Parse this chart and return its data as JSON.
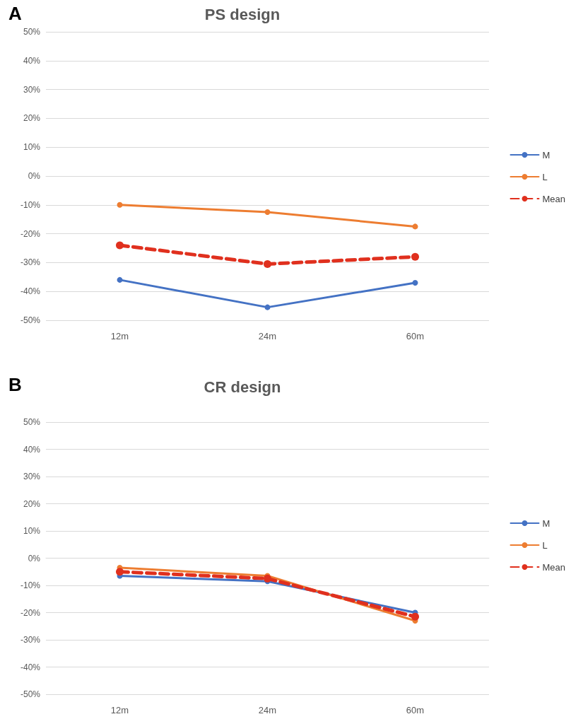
{
  "chart_data": [
    {
      "type": "line",
      "title": "PS design",
      "annotations": [
        "A"
      ],
      "categories": [
        "12m",
        "24m",
        "60m"
      ],
      "series": [
        {
          "name": "M",
          "color": "#4472c4",
          "values": [
            -36,
            -45.5,
            -37
          ]
        },
        {
          "name": "L",
          "color": "#ed7d31",
          "values": [
            -10,
            -12.5,
            -17.5
          ]
        },
        {
          "name": "Mean",
          "color": "#e0301e",
          "values": [
            -24,
            -30.5,
            -28
          ],
          "line_style": "dashed"
        }
      ],
      "ylim": [
        -50,
        50
      ],
      "yticks": [
        {
          "value": -50,
          "label": "-50%"
        },
        {
          "value": -40,
          "label": "-40%"
        },
        {
          "value": -30,
          "label": "-30%"
        },
        {
          "value": -20,
          "label": "-20%"
        },
        {
          "value": -10,
          "label": "-10%"
        },
        {
          "value": 0,
          "label": "0%"
        },
        {
          "value": 10,
          "label": "10%"
        },
        {
          "value": 20,
          "label": "20%"
        },
        {
          "value": 30,
          "label": "30%"
        },
        {
          "value": 40,
          "label": "40%"
        },
        {
          "value": 50,
          "label": "50%"
        }
      ],
      "grid": "y",
      "legend": "right",
      "marker": "circle"
    },
    {
      "type": "line",
      "title": "CR design",
      "annotations": [
        "B"
      ],
      "categories": [
        "12m",
        "24m",
        "60m"
      ],
      "series": [
        {
          "name": "M",
          "color": "#4472c4",
          "values": [
            -6.5,
            -8.5,
            -20
          ]
        },
        {
          "name": "L",
          "color": "#ed7d31",
          "values": [
            -3.5,
            -6.5,
            -23
          ]
        },
        {
          "name": "Mean",
          "color": "#e0301e",
          "values": [
            -5,
            -7.5,
            -21.5
          ],
          "line_style": "dashed"
        }
      ],
      "ylim": [
        -50,
        50
      ],
      "yticks": [
        {
          "value": -50,
          "label": "-50%"
        },
        {
          "value": -40,
          "label": "-40%"
        },
        {
          "value": -30,
          "label": "-30%"
        },
        {
          "value": -20,
          "label": "-20%"
        },
        {
          "value": -10,
          "label": "-10%"
        },
        {
          "value": 0,
          "label": "0%"
        },
        {
          "value": 10,
          "label": "10%"
        },
        {
          "value": 20,
          "label": "20%"
        },
        {
          "value": 30,
          "label": "30%"
        },
        {
          "value": 40,
          "label": "40%"
        },
        {
          "value": 50,
          "label": "50%"
        }
      ],
      "grid": "y",
      "legend": "right",
      "marker": "circle"
    }
  ]
}
